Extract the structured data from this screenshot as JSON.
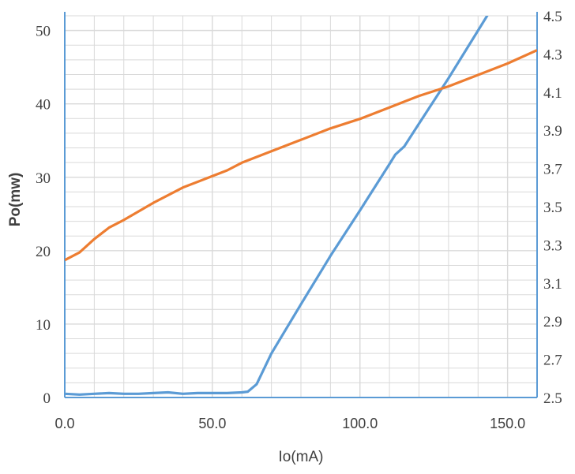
{
  "chart_data": {
    "type": "line",
    "title": "",
    "xlabel": "Io(mA)",
    "ylabel": "Po(mw)",
    "y2label": "",
    "xlim": [
      0,
      160
    ],
    "ylim": [
      0,
      52
    ],
    "y2lim": [
      2.5,
      4.5
    ],
    "x_ticks": [
      0,
      50,
      100,
      150
    ],
    "x_tick_labels": [
      "0.0",
      "50.0",
      "100.0",
      "150.0"
    ],
    "y_ticks": [
      0,
      10,
      20,
      30,
      40,
      50
    ],
    "y_tick_labels": [
      "0",
      "10",
      "20",
      "30",
      "40",
      "50"
    ],
    "y2_ticks": [
      2.5,
      2.7,
      2.9,
      3.1,
      3.3,
      3.5,
      3.7,
      3.9,
      4.1,
      4.3,
      4.5
    ],
    "y2_tick_labels": [
      "2.5",
      "2.7",
      "2.9",
      "3.1",
      "3.3",
      "3.5",
      "3.7",
      "3.9",
      "4.1",
      "4.3",
      "4.5"
    ],
    "grid": true,
    "legend": "none",
    "series": [
      {
        "axis": "left",
        "color": "#5b9bd5",
        "x": [
          0,
          5,
          10,
          15,
          20,
          25,
          30,
          35,
          40,
          45,
          50,
          55,
          60,
          62,
          65,
          70,
          80,
          90,
          100,
          110,
          112,
          115,
          120,
          130,
          140,
          150,
          160
        ],
        "y": [
          0.5,
          0.4,
          0.5,
          0.6,
          0.5,
          0.5,
          0.6,
          0.7,
          0.5,
          0.6,
          0.6,
          0.6,
          0.7,
          0.8,
          1.8,
          6,
          12.7,
          19.3,
          25.5,
          31.8,
          33.1,
          34.2,
          37.3,
          43.5,
          50,
          56.5,
          63
        ]
      },
      {
        "axis": "right",
        "color": "#ed7d31",
        "x": [
          0,
          5,
          10,
          15,
          20,
          30,
          40,
          50,
          55,
          60,
          70,
          80,
          90,
          100,
          110,
          120,
          130,
          140,
          150,
          160
        ],
        "y": [
          3.22,
          3.26,
          3.33,
          3.39,
          3.43,
          3.52,
          3.6,
          3.66,
          3.69,
          3.73,
          3.79,
          3.85,
          3.91,
          3.96,
          4.02,
          4.08,
          4.13,
          4.19,
          4.25,
          4.32
        ]
      }
    ]
  },
  "colors": {
    "grid": "#d9d9d9",
    "axis": "#5b9bd5",
    "text": "#404040"
  }
}
